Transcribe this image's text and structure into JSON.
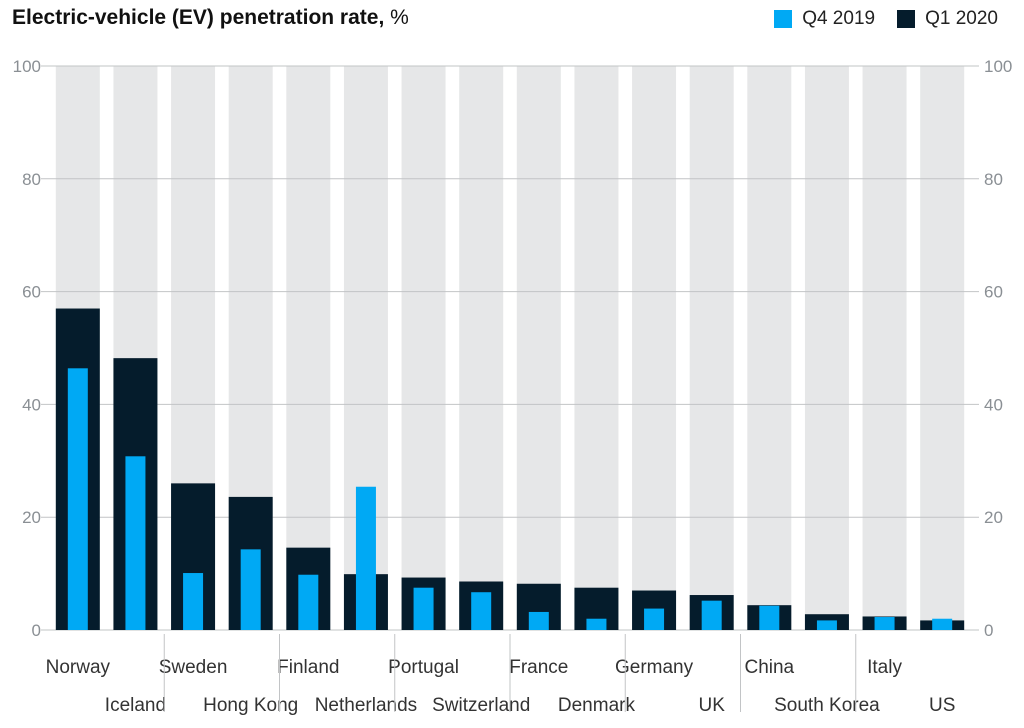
{
  "chart_data": {
    "type": "bar",
    "title": "Electric-vehicle (EV) penetration rate,",
    "title_unit": "%",
    "categories": [
      "Norway",
      "Iceland",
      "Sweden",
      "Hong Kong",
      "Finland",
      "Netherlands",
      "Portugal",
      "Switzerland",
      "France",
      "Denmark",
      "Germany",
      "UK",
      "China",
      "South Korea",
      "Italy",
      "US"
    ],
    "series": [
      {
        "name": "Q4 2019",
        "color": "#00a9f4",
        "values": [
          46.4,
          30.8,
          10.1,
          14.3,
          9.8,
          25.4,
          7.5,
          6.7,
          3.2,
          2.0,
          3.8,
          5.2,
          4.3,
          1.7,
          2.3,
          2.0
        ]
      },
      {
        "name": "Q1 2020",
        "color": "#051c2c",
        "values": [
          57.0,
          48.2,
          26.0,
          23.6,
          14.6,
          9.9,
          9.3,
          8.6,
          8.2,
          7.5,
          7.0,
          6.2,
          4.4,
          2.8,
          2.4,
          1.7
        ]
      }
    ],
    "ylim": [
      0,
      100
    ],
    "yticks": [
      0,
      20,
      40,
      60,
      80,
      100
    ],
    "background_band_color": "#e6e7e8",
    "grid": true,
    "legend_position": "top-right"
  }
}
